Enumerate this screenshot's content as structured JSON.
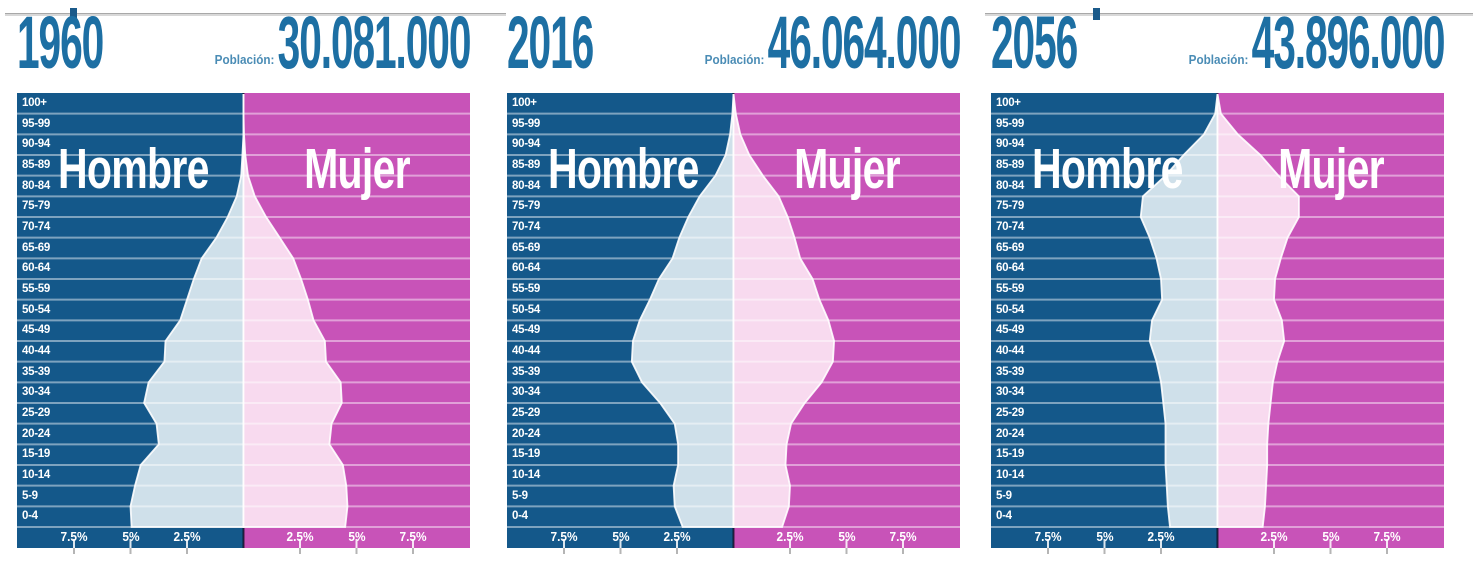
{
  "labels": {
    "male": "Hombre",
    "female": "Mujer",
    "population": "Población:"
  },
  "age_groups": [
    "100+",
    "95-99",
    "90-94",
    "85-89",
    "80-84",
    "75-79",
    "70-74",
    "65-69",
    "60-64",
    "55-59",
    "50-54",
    "45-49",
    "40-44",
    "35-39",
    "30-34",
    "25-29",
    "20-24",
    "15-19",
    "10-14",
    "5-9",
    "0-4"
  ],
  "x_axis": {
    "tick_percents": [
      2.5,
      5,
      7.5
    ],
    "tick_labels_left": [
      "7.5%",
      "5%",
      "2.5%"
    ],
    "tick_labels_right": [
      "2.5%",
      "5%",
      "7.5%"
    ],
    "xlim_percent": [
      -10,
      10
    ]
  },
  "colors": {
    "male_bg": "#14588a",
    "female_bg": "#c853b8",
    "male_overlay": "#cfe0ea",
    "female_overlay": "#f8daef",
    "header_text": "#1d6fa3",
    "population_caption": "#4a8cb5",
    "grid": "rgba(255,255,255,0.45)",
    "outline": "rgba(255,255,255,0.9)",
    "divider": "rgba(5,10,25,0.75)",
    "tick_mark": "rgba(255,255,255,0.85)",
    "tick_stub": "#b5b5b5",
    "slider_track": "#d8d8d8",
    "slider_handle": "#1b5a8a"
  },
  "chart_data": [
    {
      "type": "area",
      "subtype": "population-pyramid",
      "year": "1960",
      "population": "30.081.000",
      "value_unit": "percent of total population",
      "age_groups_order": "top(100+) to bottom(0-4)",
      "series": [
        {
          "name": "Hombre",
          "side": "left",
          "values": [
            0,
            0,
            0.05,
            0.1,
            0.3,
            0.7,
            1.2,
            1.85,
            2.2,
            2.5,
            2.8,
            3.45,
            3.5,
            4.2,
            4.4,
            3.85,
            3.75,
            4.55,
            4.8,
            5.0,
            4.95
          ]
        },
        {
          "name": "Mujer",
          "side": "right",
          "values": [
            0,
            0.02,
            0.08,
            0.2,
            0.5,
            1.0,
            1.6,
            2.2,
            2.55,
            2.85,
            3.1,
            3.6,
            3.65,
            4.3,
            4.35,
            3.9,
            3.8,
            4.4,
            4.55,
            4.6,
            4.5
          ]
        }
      ],
      "slider": {
        "visible": true,
        "handle_fraction": 0.13
      }
    },
    {
      "type": "area",
      "subtype": "population-pyramid",
      "year": "2016",
      "population": "46.064.000",
      "value_unit": "percent of total population",
      "age_groups_order": "top(100+) to bottom(0-4)",
      "series": [
        {
          "name": "Hombre",
          "side": "left",
          "values": [
            0.05,
            0.15,
            0.35,
            0.8,
            1.5,
            2.0,
            2.4,
            2.7,
            3.3,
            3.7,
            4.15,
            4.45,
            4.5,
            4.05,
            3.25,
            2.6,
            2.45,
            2.45,
            2.65,
            2.6,
            2.25
          ]
        },
        {
          "name": "Mujer",
          "side": "right",
          "values": [
            0.1,
            0.3,
            0.7,
            1.3,
            2.0,
            2.4,
            2.7,
            2.95,
            3.5,
            3.8,
            4.2,
            4.45,
            4.4,
            3.9,
            3.15,
            2.55,
            2.35,
            2.3,
            2.5,
            2.45,
            2.15
          ]
        }
      ],
      "slider": {
        "visible": false
      }
    },
    {
      "type": "area",
      "subtype": "population-pyramid",
      "year": "2056",
      "population": "43.896.000",
      "value_unit": "percent of total population",
      "age_groups_order": "top(100+) to bottom(0-4)",
      "series": [
        {
          "name": "Hombre",
          "side": "left",
          "values": [
            0.1,
            0.6,
            1.5,
            2.3,
            3.3,
            3.4,
            3.0,
            2.7,
            2.5,
            2.45,
            2.9,
            3.0,
            2.7,
            2.5,
            2.4,
            2.3,
            2.3,
            2.3,
            2.25,
            2.2,
            2.1
          ]
        },
        {
          "name": "Mujer",
          "side": "right",
          "values": [
            0.15,
            0.9,
            1.9,
            2.7,
            3.6,
            3.6,
            3.1,
            2.8,
            2.55,
            2.5,
            2.85,
            2.95,
            2.65,
            2.45,
            2.35,
            2.25,
            2.2,
            2.2,
            2.15,
            2.1,
            2.0
          ]
        }
      ],
      "slider": {
        "visible": true,
        "handle_fraction": 0.221
      }
    }
  ]
}
